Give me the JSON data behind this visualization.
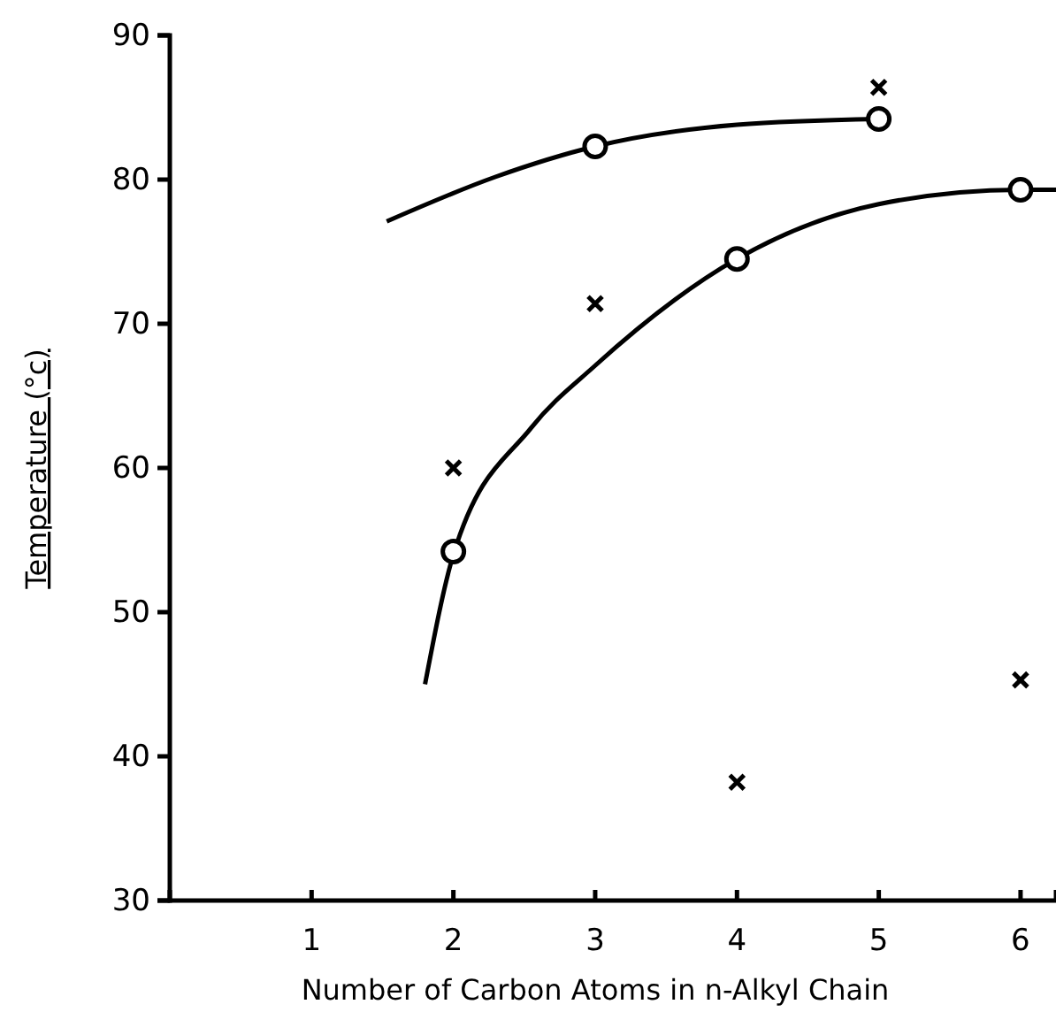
{
  "chart_data": {
    "type": "scatter",
    "xlabel": "Number of Carbon Atoms in n-Alkyl Chain",
    "ylabel": "Temperature (°c)",
    "xlim": [
      0,
      6.25
    ],
    "ylim": [
      30,
      90
    ],
    "xticks": [
      1,
      2,
      3,
      4,
      5,
      6
    ],
    "yticks": [
      30,
      40,
      50,
      60,
      70,
      80,
      90
    ],
    "grid": false,
    "series": [
      {
        "type": "line",
        "color": "#000000",
        "marker": "none",
        "x": [
          1.53,
          2.3,
          3,
          4,
          5
        ],
        "values": [
          77.1,
          80.2,
          82.3,
          83.8,
          84.2
        ]
      },
      {
        "type": "line",
        "color": "#000000",
        "marker": "none",
        "x": [
          1.8,
          2,
          2.55,
          3,
          4,
          5,
          6,
          6.25
        ],
        "values": [
          45,
          54,
          62.8,
          67.1,
          74.5,
          78.3,
          79.3,
          79.3
        ]
      },
      {
        "color": "#000000",
        "marker": "circle",
        "x": [
          2,
          3,
          4,
          5,
          6
        ],
        "values": [
          54.2,
          82.3,
          74.5,
          84.2,
          79.3
        ]
      },
      {
        "color": "#000000",
        "marker": "cross",
        "x": [
          2,
          3,
          4,
          5,
          6
        ],
        "values": [
          60,
          71.4,
          38.2,
          86.4,
          45.3
        ]
      }
    ]
  }
}
